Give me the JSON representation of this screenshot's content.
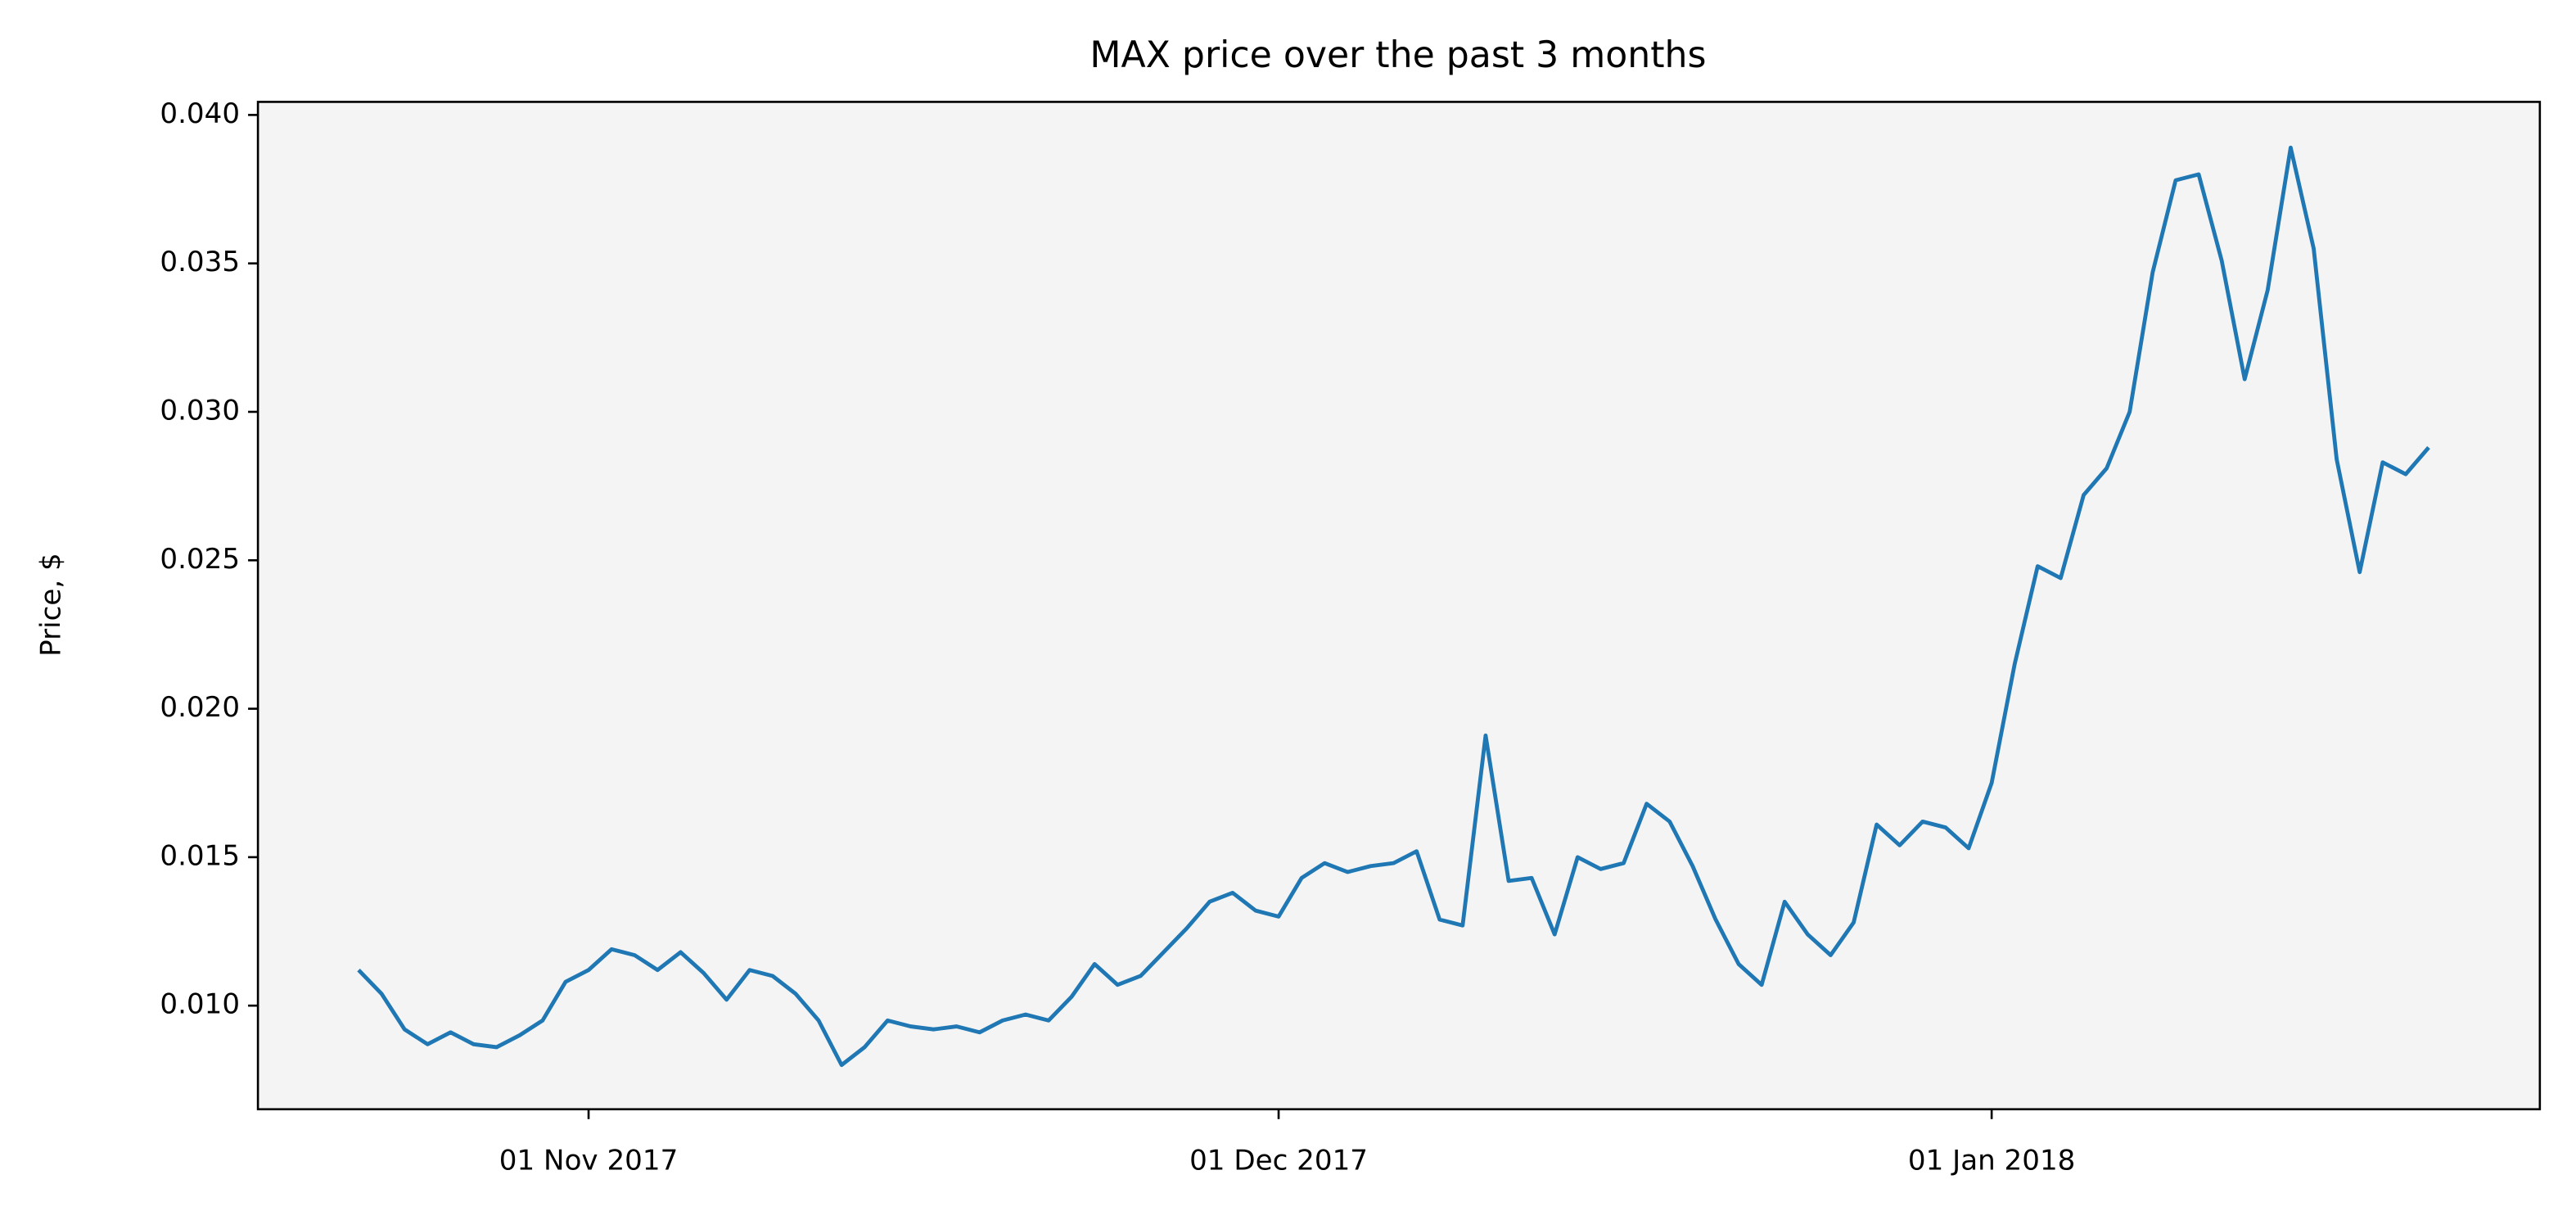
{
  "chart_data": {
    "type": "line",
    "title": "MAX price over the past 3 months",
    "y_label": "Price, $",
    "x": [
      "2017-10-22",
      "2017-10-23",
      "2017-10-24",
      "2017-10-25",
      "2017-10-26",
      "2017-10-27",
      "2017-10-28",
      "2017-10-29",
      "2017-10-30",
      "2017-10-31",
      "2017-11-01",
      "2017-11-02",
      "2017-11-03",
      "2017-11-04",
      "2017-11-05",
      "2017-11-06",
      "2017-11-07",
      "2017-11-08",
      "2017-11-09",
      "2017-11-10",
      "2017-11-11",
      "2017-11-12",
      "2017-11-13",
      "2017-11-14",
      "2017-11-15",
      "2017-11-16",
      "2017-11-17",
      "2017-11-18",
      "2017-11-19",
      "2017-11-20",
      "2017-11-21",
      "2017-11-22",
      "2017-11-23",
      "2017-11-24",
      "2017-11-25",
      "2017-11-26",
      "2017-11-27",
      "2017-11-28",
      "2017-11-29",
      "2017-11-30",
      "2017-12-01",
      "2017-12-02",
      "2017-12-03",
      "2017-12-04",
      "2017-12-05",
      "2017-12-06",
      "2017-12-07",
      "2017-12-08",
      "2017-12-09",
      "2017-12-10",
      "2017-12-11",
      "2017-12-12",
      "2017-12-13",
      "2017-12-14",
      "2017-12-15",
      "2017-12-16",
      "2017-12-17",
      "2017-12-18",
      "2017-12-19",
      "2017-12-20",
      "2017-12-21",
      "2017-12-22",
      "2017-12-23",
      "2017-12-24",
      "2017-12-25",
      "2017-12-26",
      "2017-12-27",
      "2017-12-28",
      "2017-12-29",
      "2017-12-30",
      "2017-12-31",
      "2018-01-01",
      "2018-01-02",
      "2018-01-03",
      "2018-01-04",
      "2018-01-05",
      "2018-01-06",
      "2018-01-07",
      "2018-01-08",
      "2018-01-09",
      "2018-01-10",
      "2018-01-11",
      "2018-01-12",
      "2018-01-13",
      "2018-01-14",
      "2018-01-15",
      "2018-01-16",
      "2018-01-17",
      "2018-01-18",
      "2018-01-19",
      "2018-01-20"
    ],
    "values": [
      0.0112,
      0.0104,
      0.0092,
      0.0087,
      0.0091,
      0.0087,
      0.0086,
      0.009,
      0.0095,
      0.0108,
      0.0112,
      0.0119,
      0.0117,
      0.0112,
      0.0118,
      0.0111,
      0.0102,
      0.0112,
      0.011,
      0.0104,
      0.0095,
      0.008,
      0.0086,
      0.0095,
      0.0093,
      0.0092,
      0.0093,
      0.0091,
      0.0095,
      0.0097,
      0.0095,
      0.0103,
      0.0114,
      0.0107,
      0.011,
      0.0118,
      0.0126,
      0.0135,
      0.0138,
      0.0132,
      0.013,
      0.0143,
      0.0148,
      0.0145,
      0.0147,
      0.0148,
      0.0152,
      0.0129,
      0.0127,
      0.0191,
      0.0142,
      0.0143,
      0.0124,
      0.015,
      0.0146,
      0.0148,
      0.0168,
      0.0162,
      0.0147,
      0.0129,
      0.0114,
      0.0107,
      0.0135,
      0.0124,
      0.0117,
      0.0128,
      0.0161,
      0.0154,
      0.0162,
      0.016,
      0.0153,
      0.0175,
      0.0215,
      0.0248,
      0.0244,
      0.0272,
      0.0281,
      0.03,
      0.0347,
      0.0378,
      0.038,
      0.0351,
      0.0311,
      0.0341,
      0.0389,
      0.0355,
      0.0284,
      0.0246,
      0.0283,
      0.0279,
      0.0288
    ],
    "color": "#1f77b4",
    "xlim": [
      "2017-10-17T15:00",
      "2018-01-24T20:00"
    ],
    "xticks": [
      {
        "value": "2017-11-01",
        "label": "01 Nov 2017"
      },
      {
        "value": "2017-12-01",
        "label": "01 Dec 2017"
      },
      {
        "value": "2018-01-01",
        "label": "01 Jan 2018"
      }
    ],
    "ylim": [
      0.00651,
      0.04044
    ],
    "yticks": [
      {
        "value": 0.01,
        "label": "0.010"
      },
      {
        "value": 0.015,
        "label": "0.015"
      },
      {
        "value": 0.02,
        "label": "0.020"
      },
      {
        "value": 0.025,
        "label": "0.025"
      },
      {
        "value": 0.03,
        "label": "0.030"
      },
      {
        "value": 0.035,
        "label": "0.035"
      },
      {
        "value": 0.04,
        "label": "0.040"
      }
    ],
    "background": "#f4f4f4"
  }
}
